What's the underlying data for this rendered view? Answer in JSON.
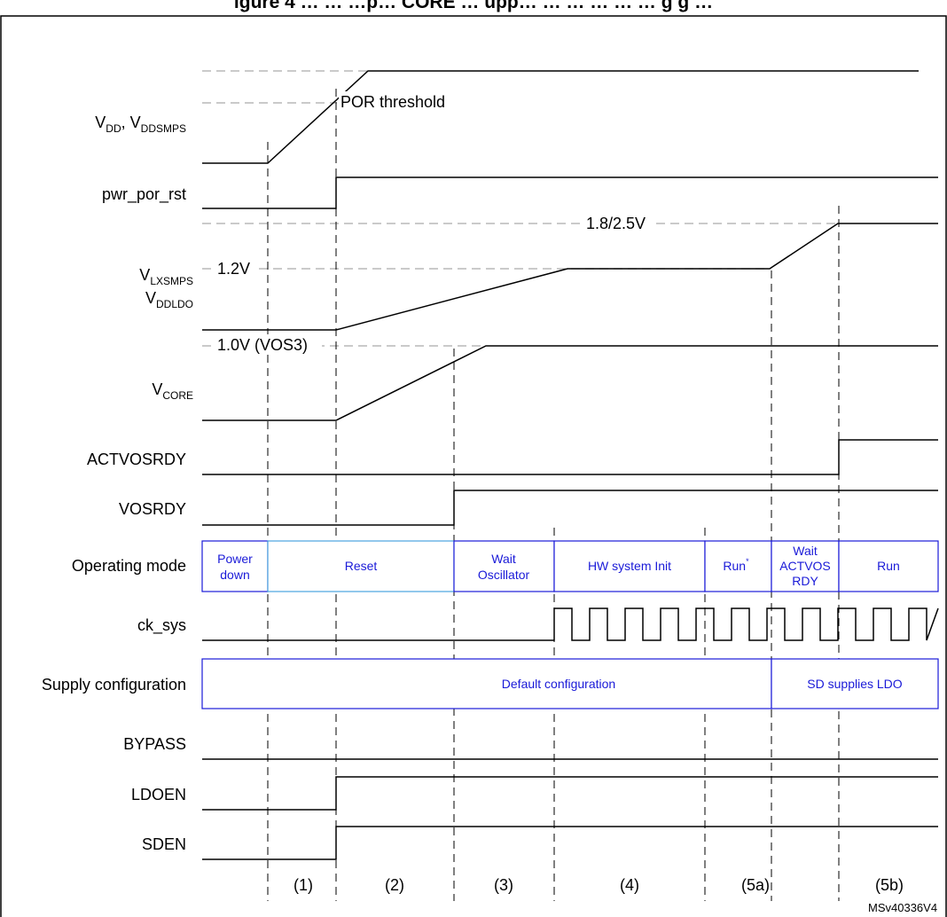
{
  "header_text": "igure 4 …  …  …p…  CORE … upp… … … … … … g g …",
  "signals": {
    "vdd": {
      "main": "V",
      "sub1": "DD",
      "sep": ", V",
      "sub2": "DDSMPS"
    },
    "pwr_por_rst": "pwr_por_rst",
    "vlxsmps": {
      "main": "V",
      "sub": "LXSMPS"
    },
    "vddldo": {
      "main": "V",
      "sub": "DDLDO"
    },
    "vcore": {
      "main": "V",
      "sub": "CORE"
    },
    "actvosrdy": "ACTVOSRDY",
    "vosrdy": "VOSRDY",
    "operating_mode": "Operating mode",
    "ck_sys": "ck_sys",
    "supply_configuration": "Supply configuration",
    "bypass": "BYPASS",
    "ldoen": "LDOEN",
    "sden": "SDEN"
  },
  "annotations": {
    "por_threshold": "POR threshold",
    "v_18_25": "1.8/2.5V",
    "v_12": "1.2V",
    "v_10": "1.0V (VOS3)"
  },
  "operating_modes": {
    "power_down": [
      "Power",
      "down"
    ],
    "reset": "Reset",
    "wait_oscillator": [
      "Wait",
      "Oscillator"
    ],
    "hw_system_init": "HW system Init",
    "run_star": {
      "text": "Run",
      "mark": "*"
    },
    "wait_actvos_rdy": [
      "Wait",
      "ACTVOS",
      "RDY"
    ],
    "run": "Run"
  },
  "supply_configs": {
    "default": "Default configuration",
    "sd_ldo": "SD supplies LDO"
  },
  "phases": [
    "(1)",
    "(2)",
    "(3)",
    "(4)",
    "(5a)",
    "(5b)"
  ],
  "reference": "MSv40336V4",
  "colors": {
    "mode_text": "#1a1ad8",
    "box_border": "#1a1ad8",
    "threshold_lines": "#aaaaaa"
  }
}
